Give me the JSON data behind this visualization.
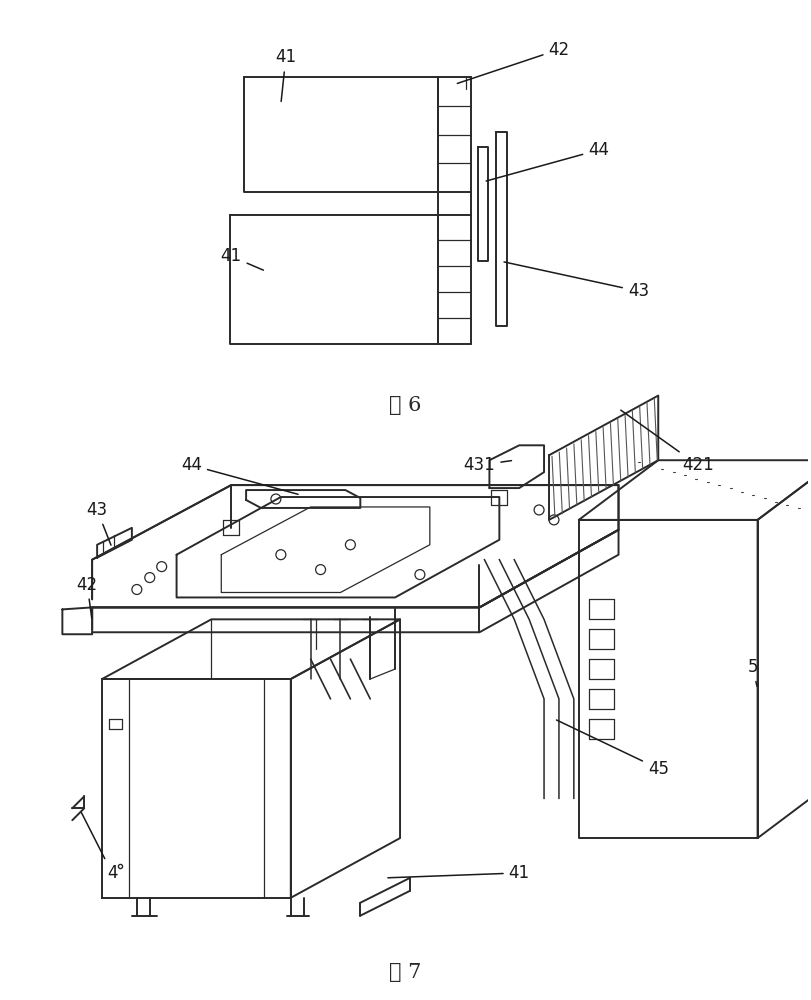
{
  "background_color": "#ffffff",
  "line_color": "#2a2a2a",
  "line_width": 1.4,
  "thin_lw": 0.9,
  "annotation_fontsize": 12,
  "fig_label_fontsize": 15,
  "fig6_label": "图 6",
  "fig7_label": "图 7"
}
